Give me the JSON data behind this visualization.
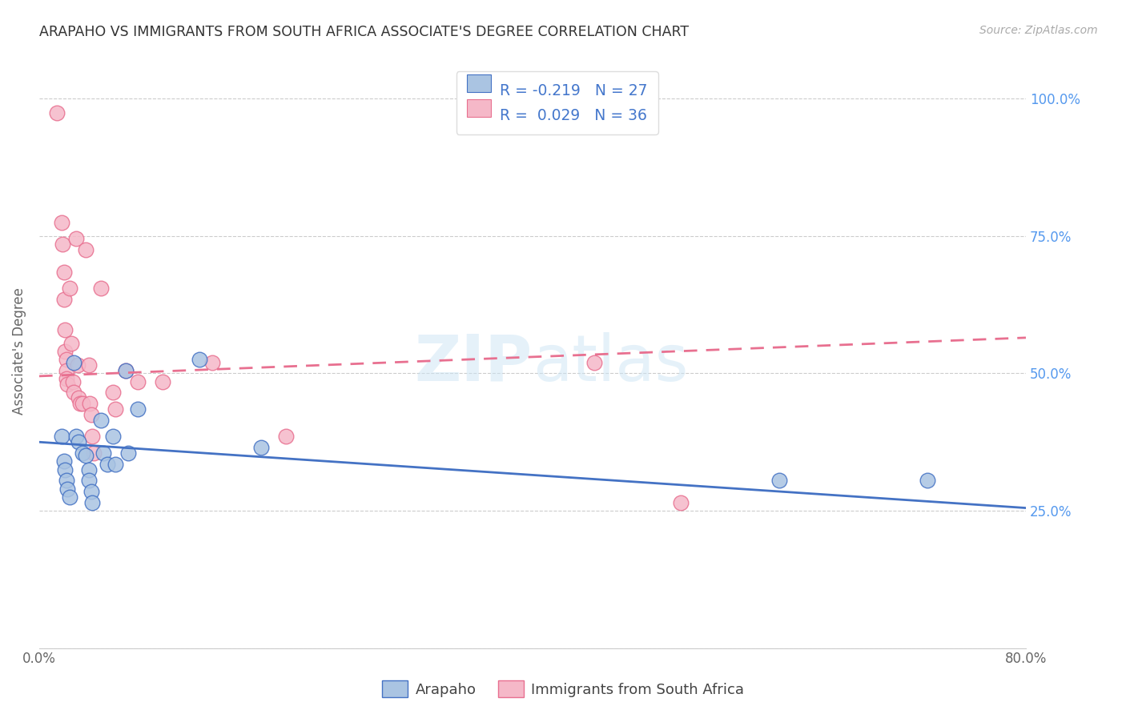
{
  "title": "ARAPAHO VS IMMIGRANTS FROM SOUTH AFRICA ASSOCIATE'S DEGREE CORRELATION CHART",
  "source_text": "Source: ZipAtlas.com",
  "ylabel": "Associate's Degree",
  "xlim": [
    0.0,
    0.8
  ],
  "ylim": [
    0.0,
    1.08
  ],
  "ytick_vals": [
    0.0,
    0.25,
    0.5,
    0.75,
    1.0
  ],
  "xtick_vals": [
    0.0,
    0.16,
    0.32,
    0.48,
    0.64,
    0.8
  ],
  "watermark": "ZIPatlas",
  "blue_color": "#aac4e2",
  "pink_color": "#f5b8c8",
  "blue_line_color": "#4472c4",
  "pink_line_color": "#e87090",
  "blue_scatter": [
    [
      0.018,
      0.385
    ],
    [
      0.02,
      0.34
    ],
    [
      0.021,
      0.325
    ],
    [
      0.022,
      0.305
    ],
    [
      0.023,
      0.29
    ],
    [
      0.025,
      0.275
    ],
    [
      0.028,
      0.52
    ],
    [
      0.03,
      0.385
    ],
    [
      0.032,
      0.375
    ],
    [
      0.035,
      0.355
    ],
    [
      0.038,
      0.35
    ],
    [
      0.04,
      0.325
    ],
    [
      0.04,
      0.305
    ],
    [
      0.042,
      0.285
    ],
    [
      0.043,
      0.265
    ],
    [
      0.05,
      0.415
    ],
    [
      0.052,
      0.355
    ],
    [
      0.055,
      0.335
    ],
    [
      0.06,
      0.385
    ],
    [
      0.062,
      0.335
    ],
    [
      0.07,
      0.505
    ],
    [
      0.072,
      0.355
    ],
    [
      0.08,
      0.435
    ],
    [
      0.13,
      0.525
    ],
    [
      0.18,
      0.365
    ],
    [
      0.6,
      0.305
    ],
    [
      0.72,
      0.305
    ]
  ],
  "pink_scatter": [
    [
      0.014,
      0.975
    ],
    [
      0.018,
      0.775
    ],
    [
      0.019,
      0.735
    ],
    [
      0.02,
      0.685
    ],
    [
      0.02,
      0.635
    ],
    [
      0.021,
      0.58
    ],
    [
      0.021,
      0.54
    ],
    [
      0.022,
      0.525
    ],
    [
      0.022,
      0.505
    ],
    [
      0.022,
      0.49
    ],
    [
      0.023,
      0.48
    ],
    [
      0.025,
      0.655
    ],
    [
      0.026,
      0.555
    ],
    [
      0.027,
      0.485
    ],
    [
      0.028,
      0.465
    ],
    [
      0.03,
      0.745
    ],
    [
      0.031,
      0.515
    ],
    [
      0.032,
      0.455
    ],
    [
      0.033,
      0.445
    ],
    [
      0.035,
      0.445
    ],
    [
      0.038,
      0.725
    ],
    [
      0.04,
      0.515
    ],
    [
      0.041,
      0.445
    ],
    [
      0.042,
      0.425
    ],
    [
      0.043,
      0.385
    ],
    [
      0.044,
      0.355
    ],
    [
      0.05,
      0.655
    ],
    [
      0.06,
      0.465
    ],
    [
      0.062,
      0.435
    ],
    [
      0.07,
      0.505
    ],
    [
      0.08,
      0.485
    ],
    [
      0.1,
      0.485
    ],
    [
      0.14,
      0.52
    ],
    [
      0.2,
      0.385
    ],
    [
      0.45,
      0.52
    ],
    [
      0.52,
      0.265
    ]
  ],
  "blue_trend_x": [
    0.0,
    0.8
  ],
  "blue_trend_y": [
    0.375,
    0.255
  ],
  "pink_trend_x": [
    0.0,
    0.8
  ],
  "pink_trend_y": [
    0.495,
    0.565
  ]
}
